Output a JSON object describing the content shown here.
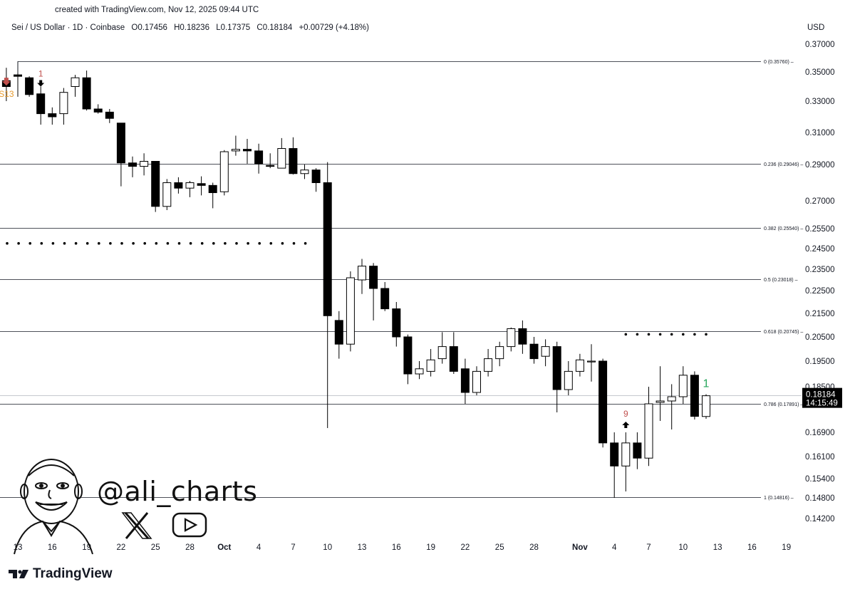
{
  "header": {
    "created_line": "created with TradingView.com, Nov 12, 2025 09:44 UTC",
    "symbol": "Sei / US Dollar · 1D · Coinbase",
    "o_label": "O",
    "o_value": "0.17456",
    "h_label": "H",
    "h_value": "0.18236",
    "l_label": "L",
    "l_value": "0.17375",
    "c_label": "C",
    "c_value": "0.18184",
    "change": "+0.00729 (+4.18%)",
    "currency": "USD"
  },
  "current_price": {
    "price": "0.18184",
    "countdown": "14:15:49"
  },
  "watermark": {
    "handle": "@ali_charts",
    "icons": [
      "x-logo-icon",
      "youtube-icon",
      "caricature-avatar-icon"
    ]
  },
  "brand": {
    "name": "TradingView",
    "icon": "tradingview-logo-icon"
  },
  "colors": {
    "up_body": "#ffffff",
    "down_body": "#000000",
    "grid": "#131722",
    "td_red": "#c0504d",
    "td_green": "#26a65b",
    "td_orange": "#e69a2e"
  },
  "chart_data": {
    "type": "candlestick",
    "title": "Sei / US Dollar · 1D · Coinbase",
    "ylim": [
      0.139,
      0.376
    ],
    "y_ticks": [
      "0.37000",
      "0.35000",
      "0.33000",
      "0.31000",
      "0.29000",
      "0.27000",
      "0.25500",
      "0.24500",
      "0.23500",
      "0.22500",
      "0.21500",
      "0.20500",
      "0.19500",
      "0.18500",
      "0.16900",
      "0.16100",
      "0.15400",
      "0.14800",
      "0.14200"
    ],
    "x_ticks": [
      {
        "label": "13",
        "date": "2025-09-13",
        "bold": false
      },
      {
        "label": "16",
        "date": "2025-09-16",
        "bold": false
      },
      {
        "label": "19",
        "date": "2025-09-19",
        "bold": false
      },
      {
        "label": "22",
        "date": "2025-09-22",
        "bold": false
      },
      {
        "label": "25",
        "date": "2025-09-25",
        "bold": false
      },
      {
        "label": "28",
        "date": "2025-09-28",
        "bold": false
      },
      {
        "label": "Oct",
        "date": "2025-10-01",
        "bold": true
      },
      {
        "label": "4",
        "date": "2025-10-04",
        "bold": false
      },
      {
        "label": "7",
        "date": "2025-10-07",
        "bold": false
      },
      {
        "label": "10",
        "date": "2025-10-10",
        "bold": false
      },
      {
        "label": "13",
        "date": "2025-10-13",
        "bold": false
      },
      {
        "label": "16",
        "date": "2025-10-16",
        "bold": false
      },
      {
        "label": "19",
        "date": "2025-10-19",
        "bold": false
      },
      {
        "label": "22",
        "date": "2025-10-22",
        "bold": false
      },
      {
        "label": "25",
        "date": "2025-10-25",
        "bold": false
      },
      {
        "label": "28",
        "date": "2025-10-28",
        "bold": false
      },
      {
        "label": "Nov",
        "date": "2025-11-01",
        "bold": true
      },
      {
        "label": "4",
        "date": "2025-11-04",
        "bold": false
      },
      {
        "label": "7",
        "date": "2025-11-07",
        "bold": false
      },
      {
        "label": "10",
        "date": "2025-11-10",
        "bold": false
      },
      {
        "label": "13",
        "date": "2025-11-13",
        "bold": false
      },
      {
        "label": "16",
        "date": "2025-11-16",
        "bold": false
      },
      {
        "label": "19",
        "date": "2025-11-19",
        "bold": false
      }
    ],
    "fib_levels": [
      {
        "label": "0 (0.35760)",
        "value": 0.3576
      },
      {
        "label": "0.236 (0.29046)",
        "value": 0.29046
      },
      {
        "label": "0.382 (0.25540)",
        "value": 0.2554
      },
      {
        "label": "0.5 (0.23018)",
        "value": 0.23018
      },
      {
        "label": "0.618 (0.20745)",
        "value": 0.20745
      },
      {
        "label": "0.786 (0.17891)",
        "value": 0.17891
      },
      {
        "label": "1 (0.14816)",
        "value": 0.14816
      }
    ],
    "dotted_levels": [
      {
        "value": 0.2476,
        "from": "2025-09-12",
        "to": "2025-10-09"
      },
      {
        "value": 0.2061,
        "from": "2025-11-05",
        "to": "2025-11-13"
      }
    ],
    "candles": [
      {
        "date": "2025-09-12",
        "o": 0.344,
        "h": 0.353,
        "l": 0.33,
        "c": 0.34
      },
      {
        "date": "2025-09-13",
        "o": 0.348,
        "h": 0.349,
        "l": 0.333,
        "c": 0.347
      },
      {
        "date": "2025-09-14",
        "o": 0.346,
        "h": 0.347,
        "l": 0.333,
        "c": 0.3345
      },
      {
        "date": "2025-09-15",
        "o": 0.335,
        "h": 0.34,
        "l": 0.315,
        "c": 0.322
      },
      {
        "date": "2025-09-16",
        "o": 0.322,
        "h": 0.326,
        "l": 0.315,
        "c": 0.32
      },
      {
        "date": "2025-09-17",
        "o": 0.322,
        "h": 0.339,
        "l": 0.315,
        "c": 0.336
      },
      {
        "date": "2025-09-18",
        "o": 0.34,
        "h": 0.348,
        "l": 0.333,
        "c": 0.346
      },
      {
        "date": "2025-09-19",
        "o": 0.346,
        "h": 0.351,
        "l": 0.324,
        "c": 0.325
      },
      {
        "date": "2025-09-20",
        "o": 0.325,
        "h": 0.328,
        "l": 0.322,
        "c": 0.323
      },
      {
        "date": "2025-09-21",
        "o": 0.323,
        "h": 0.325,
        "l": 0.316,
        "c": 0.319
      },
      {
        "date": "2025-09-22",
        "o": 0.316,
        "h": 0.316,
        "l": 0.278,
        "c": 0.291
      },
      {
        "date": "2025-09-23",
        "o": 0.291,
        "h": 0.295,
        "l": 0.283,
        "c": 0.289
      },
      {
        "date": "2025-09-24",
        "o": 0.289,
        "h": 0.297,
        "l": 0.284,
        "c": 0.292
      },
      {
        "date": "2025-09-25",
        "o": 0.292,
        "h": 0.292,
        "l": 0.264,
        "c": 0.267
      },
      {
        "date": "2025-09-26",
        "o": 0.267,
        "h": 0.282,
        "l": 0.265,
        "c": 0.28
      },
      {
        "date": "2025-09-27",
        "o": 0.28,
        "h": 0.283,
        "l": 0.274,
        "c": 0.277
      },
      {
        "date": "2025-09-28",
        "o": 0.277,
        "h": 0.281,
        "l": 0.272,
        "c": 0.28
      },
      {
        "date": "2025-09-29",
        "o": 0.2795,
        "h": 0.2835,
        "l": 0.273,
        "c": 0.2785
      },
      {
        "date": "2025-09-30",
        "o": 0.2785,
        "h": 0.28,
        "l": 0.266,
        "c": 0.2745
      },
      {
        "date": "2025-10-01",
        "o": 0.275,
        "h": 0.299,
        "l": 0.273,
        "c": 0.298
      },
      {
        "date": "2025-10-02",
        "o": 0.2985,
        "h": 0.308,
        "l": 0.2955,
        "c": 0.2995
      },
      {
        "date": "2025-10-03",
        "o": 0.2995,
        "h": 0.306,
        "l": 0.2905,
        "c": 0.2985
      },
      {
        "date": "2025-10-04",
        "o": 0.2985,
        "h": 0.303,
        "l": 0.285,
        "c": 0.2905
      },
      {
        "date": "2025-10-05",
        "o": 0.2895,
        "h": 0.297,
        "l": 0.288,
        "c": 0.289
      },
      {
        "date": "2025-10-06",
        "o": 0.288,
        "h": 0.3065,
        "l": 0.288,
        "c": 0.3
      },
      {
        "date": "2025-10-07",
        "o": 0.3,
        "h": 0.307,
        "l": 0.2845,
        "c": 0.285
      },
      {
        "date": "2025-10-08",
        "o": 0.285,
        "h": 0.29,
        "l": 0.282,
        "c": 0.287
      },
      {
        "date": "2025-10-09",
        "o": 0.287,
        "h": 0.288,
        "l": 0.275,
        "c": 0.28
      },
      {
        "date": "2025-10-10",
        "o": 0.28,
        "h": 0.2915,
        "l": 0.1705,
        "c": 0.214
      },
      {
        "date": "2025-10-11",
        "o": 0.212,
        "h": 0.216,
        "l": 0.196,
        "c": 0.202
      },
      {
        "date": "2025-10-12",
        "o": 0.202,
        "h": 0.234,
        "l": 0.199,
        "c": 0.231
      },
      {
        "date": "2025-10-13",
        "o": 0.23,
        "h": 0.24,
        "l": 0.2235,
        "c": 0.2365
      },
      {
        "date": "2025-10-14",
        "o": 0.2365,
        "h": 0.238,
        "l": 0.212,
        "c": 0.226
      },
      {
        "date": "2025-10-15",
        "o": 0.226,
        "h": 0.229,
        "l": 0.216,
        "c": 0.217
      },
      {
        "date": "2025-10-16",
        "o": 0.217,
        "h": 0.22,
        "l": 0.201,
        "c": 0.205
      },
      {
        "date": "2025-10-17",
        "o": 0.205,
        "h": 0.206,
        "l": 0.186,
        "c": 0.19
      },
      {
        "date": "2025-10-18",
        "o": 0.19,
        "h": 0.195,
        "l": 0.188,
        "c": 0.192
      },
      {
        "date": "2025-10-19",
        "o": 0.191,
        "h": 0.2,
        "l": 0.189,
        "c": 0.1955
      },
      {
        "date": "2025-10-20",
        "o": 0.196,
        "h": 0.207,
        "l": 0.194,
        "c": 0.201
      },
      {
        "date": "2025-10-21",
        "o": 0.201,
        "h": 0.207,
        "l": 0.19,
        "c": 0.191
      },
      {
        "date": "2025-10-22",
        "o": 0.192,
        "h": 0.196,
        "l": 0.179,
        "c": 0.183
      },
      {
        "date": "2025-10-23",
        "o": 0.183,
        "h": 0.193,
        "l": 0.182,
        "c": 0.191
      },
      {
        "date": "2025-10-24",
        "o": 0.191,
        "h": 0.2,
        "l": 0.189,
        "c": 0.196
      },
      {
        "date": "2025-10-25",
        "o": 0.196,
        "h": 0.203,
        "l": 0.193,
        "c": 0.201
      },
      {
        "date": "2025-10-26",
        "o": 0.201,
        "h": 0.209,
        "l": 0.199,
        "c": 0.2085
      },
      {
        "date": "2025-10-27",
        "o": 0.2085,
        "h": 0.212,
        "l": 0.198,
        "c": 0.202
      },
      {
        "date": "2025-10-28",
        "o": 0.202,
        "h": 0.205,
        "l": 0.194,
        "c": 0.196
      },
      {
        "date": "2025-10-29",
        "o": 0.197,
        "h": 0.204,
        "l": 0.193,
        "c": 0.201
      },
      {
        "date": "2025-10-30",
        "o": 0.201,
        "h": 0.203,
        "l": 0.176,
        "c": 0.184
      },
      {
        "date": "2025-10-31",
        "o": 0.184,
        "h": 0.195,
        "l": 0.182,
        "c": 0.191
      },
      {
        "date": "2025-11-01",
        "o": 0.191,
        "h": 0.198,
        "l": 0.189,
        "c": 0.1955
      },
      {
        "date": "2025-11-02",
        "o": 0.195,
        "h": 0.202,
        "l": 0.187,
        "c": 0.195
      },
      {
        "date": "2025-11-03",
        "o": 0.195,
        "h": 0.196,
        "l": 0.164,
        "c": 0.1655
      },
      {
        "date": "2025-11-04",
        "o": 0.1655,
        "h": 0.169,
        "l": 0.148,
        "c": 0.158
      },
      {
        "date": "2025-11-05",
        "o": 0.158,
        "h": 0.169,
        "l": 0.15,
        "c": 0.1655
      },
      {
        "date": "2025-11-06",
        "o": 0.1655,
        "h": 0.169,
        "l": 0.157,
        "c": 0.1605
      },
      {
        "date": "2025-11-07",
        "o": 0.1605,
        "h": 0.185,
        "l": 0.158,
        "c": 0.179
      },
      {
        "date": "2025-11-08",
        "o": 0.1795,
        "h": 0.193,
        "l": 0.173,
        "c": 0.18
      },
      {
        "date": "2025-11-09",
        "o": 0.18,
        "h": 0.186,
        "l": 0.17,
        "c": 0.1815
      },
      {
        "date": "2025-11-10",
        "o": 0.1815,
        "h": 0.193,
        "l": 0.179,
        "c": 0.1895
      },
      {
        "date": "2025-11-11",
        "o": 0.1895,
        "h": 0.191,
        "l": 0.1735,
        "c": 0.1746
      },
      {
        "date": "2025-11-12",
        "o": 0.17456,
        "h": 0.18236,
        "l": 0.17375,
        "c": 0.18184
      }
    ],
    "markers": [
      {
        "date": "2025-09-12",
        "text": "S13",
        "color": "#e69a2e",
        "position": "above_arrow_red"
      },
      {
        "date": "2025-09-15",
        "text": "1",
        "color": "#c0504d",
        "position": "above_arrow_black"
      },
      {
        "date": "2025-11-05",
        "text": "9",
        "color": "#c0504d",
        "position": "above_arrow_up_black"
      },
      {
        "date": "2025-11-12",
        "text": "1",
        "color": "#26a65b",
        "position": "above"
      }
    ]
  }
}
